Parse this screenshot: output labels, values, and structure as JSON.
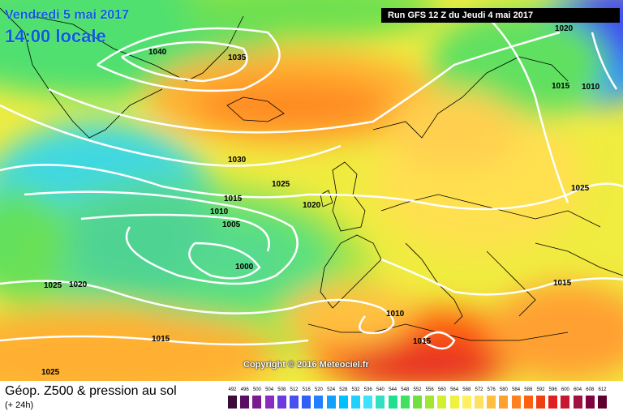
{
  "header": {
    "date": "Vendredi 5 mai 2017",
    "time": "14:00 locale",
    "run": "Run GFS 12 Z du Jeudi 4 mai 2017"
  },
  "copyright": "Copyright © 2016 Meteociel.fr",
  "legend": {
    "title": "Géop. Z500 & pression au sol",
    "subtitle": "(+ 24h)",
    "scale": [
      "492",
      "496",
      "500",
      "504",
      "508",
      "512",
      "516",
      "520",
      "524",
      "528",
      "532",
      "536",
      "540",
      "544",
      "548",
      "552",
      "556",
      "560",
      "564",
      "568",
      "572",
      "576",
      "580",
      "584",
      "588",
      "592",
      "596",
      "600",
      "604",
      "608",
      "612"
    ],
    "colors": [
      "#3a0a3a",
      "#5a1060",
      "#7a1a90",
      "#8a2cc0",
      "#6a3ce0",
      "#4a50f0",
      "#3060f8",
      "#2080ff",
      "#10a0ff",
      "#00c0ff",
      "#20d0ff",
      "#40e0ff",
      "#30e0c0",
      "#20e090",
      "#40e060",
      "#70e040",
      "#a0e830",
      "#d0f030",
      "#f0f040",
      "#fff060",
      "#ffe060",
      "#ffc040",
      "#ffa030",
      "#ff8020",
      "#ff6010",
      "#f04010",
      "#e02020",
      "#c81830",
      "#a01040",
      "#800040",
      "#600030"
    ]
  },
  "isobar_labels": [
    "1040",
    "1035",
    "1030",
    "1025",
    "1020",
    "1015",
    "1010",
    "1005",
    "1000",
    "1025",
    "1020",
    "1015",
    "1025",
    "1020",
    "1015",
    "1010",
    "1025",
    "1015",
    "1010",
    "1015",
    "1025"
  ]
}
